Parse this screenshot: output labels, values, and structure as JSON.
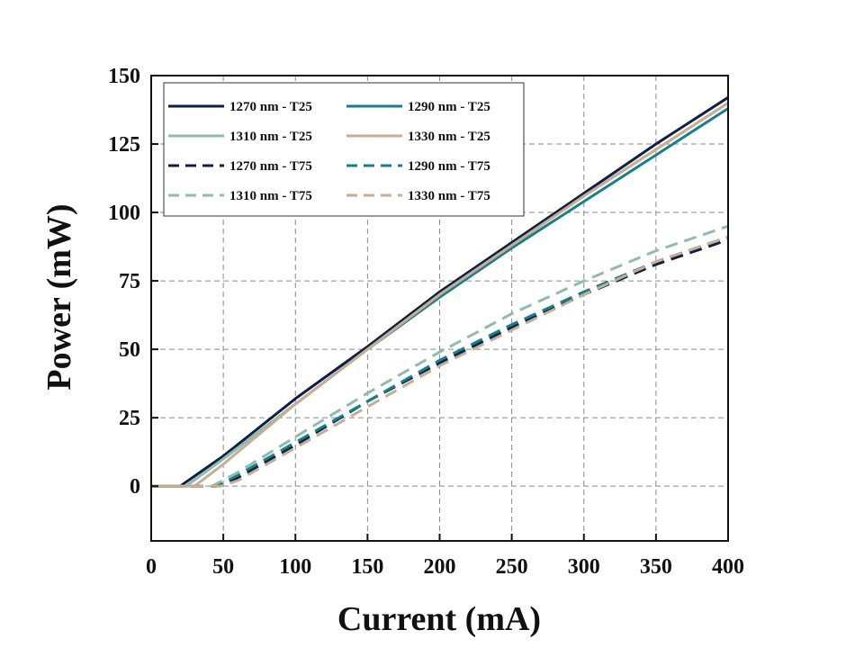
{
  "chart_data": {
    "type": "line",
    "xlabel": "Current (mA)",
    "ylabel": "Power (mW)",
    "xlim": [
      0,
      400
    ],
    "ylim": [
      -20,
      150
    ],
    "xticks": [
      0,
      50,
      100,
      150,
      200,
      250,
      300,
      350,
      400
    ],
    "yticks": [
      0,
      25,
      50,
      75,
      100,
      125,
      150
    ],
    "grid": true,
    "legend_position": "top-left",
    "legend_columns": 2,
    "series": [
      {
        "name": "1270 nm - T25",
        "color": "#0d1f45",
        "dash": "solid",
        "x": [
          0,
          20,
          50,
          100,
          150,
          200,
          250,
          300,
          350,
          400
        ],
        "y": [
          0,
          0,
          11,
          32,
          51,
          71,
          89,
          107,
          125,
          142
        ]
      },
      {
        "name": "1290 nm - T25",
        "color": "#14808a",
        "dash": "solid",
        "x": [
          0,
          24,
          50,
          100,
          150,
          200,
          250,
          300,
          350,
          400
        ],
        "y": [
          0,
          0,
          10,
          30,
          50,
          69,
          87,
          104,
          121,
          138
        ]
      },
      {
        "name": "1310 nm - T25",
        "color": "#8fbcab",
        "dash": "solid",
        "x": [
          0,
          24,
          50,
          100,
          150,
          200,
          250,
          300,
          350,
          400
        ],
        "y": [
          0,
          0,
          10,
          30,
          50,
          70,
          88,
          106,
          123,
          140
        ]
      },
      {
        "name": "1330 nm - T25",
        "color": "#c9ac94",
        "dash": "solid",
        "x": [
          0,
          30,
          50,
          100,
          150,
          200,
          250,
          300,
          350,
          400
        ],
        "y": [
          0,
          0,
          8,
          30,
          50,
          70,
          88,
          106,
          123,
          140
        ]
      },
      {
        "name": "1270 nm - T75",
        "color": "#0d1f45",
        "dash": "dashed",
        "x": [
          0,
          45,
          60,
          100,
          150,
          200,
          250,
          300,
          350,
          400
        ],
        "y": [
          0,
          0,
          3,
          15,
          31,
          45,
          58,
          70,
          81,
          90
        ]
      },
      {
        "name": "1290 nm - T75",
        "color": "#14808a",
        "dash": "dashed",
        "x": [
          0,
          45,
          60,
          100,
          150,
          200,
          250,
          300,
          350,
          400
        ],
        "y": [
          0,
          0,
          4,
          16,
          31,
          46,
          59,
          71,
          82,
          91
        ]
      },
      {
        "name": "1310 nm - T75",
        "color": "#8fbcab",
        "dash": "dashed",
        "x": [
          0,
          42,
          60,
          100,
          150,
          200,
          250,
          300,
          350,
          400
        ],
        "y": [
          0,
          0,
          5,
          18,
          34,
          49,
          63,
          75,
          86,
          95
        ]
      },
      {
        "name": "1330 nm - T75",
        "color": "#c9ac94",
        "dash": "dashed",
        "x": [
          0,
          48,
          60,
          100,
          150,
          200,
          250,
          300,
          350,
          400
        ],
        "y": [
          0,
          0,
          2,
          14,
          29,
          44,
          57,
          70,
          82,
          91
        ]
      }
    ]
  }
}
